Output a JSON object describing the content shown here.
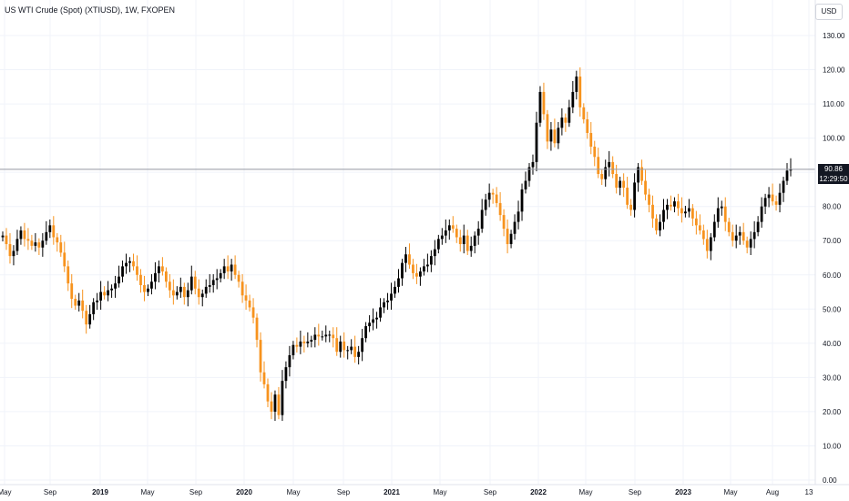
{
  "title": "US WTI Crude (Spot) (XTIUSD), 1W, FXOPEN",
  "currency": "USD",
  "last_price": "90.86",
  "countdown": "12:29:50",
  "colors": {
    "up": "#000000",
    "down": "#f7931e",
    "grid": "#f0f3fa",
    "price_line": "#9598a1",
    "text": "#131722"
  },
  "chart_data": {
    "type": "candlestick",
    "title": "US WTI Crude (Spot) (XTIUSD), 1W, FXOPEN",
    "ylim": [
      0,
      135
    ],
    "y_ticks": [
      "0.00",
      "10.00",
      "20.00",
      "30.00",
      "40.00",
      "50.00",
      "60.00",
      "70.00",
      "80.00",
      "90.00",
      "100.00",
      "110.00",
      "120.00",
      "130.00"
    ],
    "x_ticks": [
      "May",
      "Sep",
      "2019",
      "May",
      "Sep",
      "2020",
      "May",
      "Sep",
      "2021",
      "May",
      "Sep",
      "2022",
      "May",
      "Sep",
      "2023",
      "May",
      "Aug",
      "13"
    ],
    "current_price": 90.86,
    "series_closes": [
      71.5,
      69.0,
      65.5,
      67.0,
      70.5,
      73.0,
      70.5,
      70.0,
      68.5,
      69.5,
      68.0,
      70.0,
      72.5,
      74.5,
      71.0,
      69.5,
      66.5,
      62.5,
      57.5,
      53.0,
      51.0,
      52.5,
      49.5,
      45.5,
      48.5,
      52.0,
      52.5,
      55.0,
      54.0,
      55.5,
      56.0,
      57.5,
      59.5,
      62.5,
      63.5,
      64.0,
      62.5,
      60.0,
      57.0,
      55.0,
      56.0,
      58.0,
      60.5,
      62.5,
      61.0,
      58.0,
      55.5,
      54.0,
      55.0,
      56.5,
      53.5,
      55.5,
      59.5,
      56.0,
      53.5,
      54.5,
      56.5,
      57.0,
      58.5,
      59.0,
      60.5,
      62.5,
      61.0,
      63.0,
      60.0,
      58.0,
      54.0,
      52.5,
      50.5,
      47.5,
      41.0,
      31.5,
      28.0,
      23.0,
      20.0,
      25.0,
      19.0,
      29.0,
      33.0,
      36.5,
      39.5,
      39.0,
      40.5,
      40.0,
      40.5,
      41.0,
      42.5,
      42.0,
      42.0,
      42.5,
      42.5,
      41.5,
      37.5,
      40.5,
      38.0,
      38.0,
      39.0,
      36.0,
      37.5,
      41.5,
      45.0,
      46.0,
      47.0,
      47.5,
      50.5,
      52.0,
      52.5,
      54.5,
      56.5,
      59.0,
      63.5,
      66.0,
      63.0,
      60.5,
      59.5,
      61.0,
      62.5,
      63.0,
      65.5,
      67.5,
      70.5,
      71.5,
      73.0,
      74.5,
      73.5,
      71.0,
      69.0,
      71.5,
      67.0,
      68.5,
      71.5,
      73.5,
      79.0,
      82.0,
      84.0,
      83.5,
      81.0,
      77.5,
      73.5,
      69.0,
      72.0,
      75.5,
      78.5,
      85.0,
      87.5,
      91.5,
      93.0,
      104.5,
      113.5,
      107.0,
      99.0,
      102.5,
      98.5,
      103.0,
      106.0,
      104.5,
      109.0,
      113.5,
      118.0,
      109.0,
      105.5,
      101.5,
      97.5,
      94.5,
      89.5,
      88.0,
      91.5,
      93.0,
      89.5,
      85.5,
      87.5,
      85.5,
      80.5,
      79.0,
      87.0,
      91.5,
      87.5,
      83.5,
      80.5,
      76.5,
      73.0,
      75.5,
      79.0,
      80.5,
      80.0,
      81.5,
      79.5,
      78.0,
      78.5,
      79.5,
      76.5,
      74.5,
      73.0,
      70.5,
      67.0,
      71.0,
      75.5,
      79.5,
      80.0,
      75.5,
      72.5,
      70.0,
      71.5,
      72.5,
      70.0,
      68.0,
      70.5,
      72.5,
      75.5,
      80.0,
      82.5,
      83.5,
      81.5,
      80.5,
      84.0,
      87.5,
      90.5,
      90.9
    ]
  }
}
